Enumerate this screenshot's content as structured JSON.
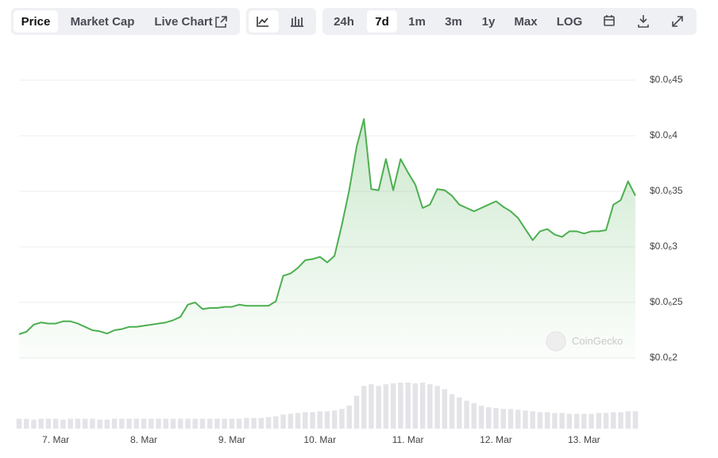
{
  "controls": {
    "tabs": [
      "Price",
      "Market Cap",
      "Live Chart"
    ],
    "ranges": [
      "24h",
      "7d",
      "1m",
      "3m",
      "1y",
      "Max",
      "LOG"
    ]
  },
  "watermark": "CoinGecko",
  "chart_data": {
    "type": "area",
    "color": "#4caf50",
    "categories": [
      null,
      null,
      null,
      null,
      null,
      "7. Mar",
      null,
      null,
      null,
      null,
      null,
      null,
      null,
      null,
      null,
      null,
      null,
      "8. Mar",
      null,
      null,
      null,
      null,
      null,
      null,
      null,
      null,
      null,
      null,
      null,
      "9. Mar",
      null,
      null,
      null,
      null,
      null,
      null,
      null,
      null,
      null,
      null,
      null,
      "10. Mar",
      null,
      null,
      null,
      null,
      null,
      null,
      null,
      null,
      null,
      null,
      null,
      "11. Mar",
      null,
      null,
      null,
      null,
      null,
      null,
      null,
      null,
      null,
      null,
      null,
      "12. Mar",
      null,
      null,
      null,
      null,
      null,
      null,
      null,
      null,
      null,
      null,
      null,
      "13. Mar",
      null,
      null,
      null,
      null,
      null,
      null,
      null
    ],
    "values": [
      2.214e-07,
      2.236e-07,
      2.3e-07,
      2.32e-07,
      2.31e-07,
      2.31e-07,
      2.33e-07,
      2.33e-07,
      2.31e-07,
      2.28e-07,
      2.25e-07,
      2.24e-07,
      2.22e-07,
      2.25e-07,
      2.26e-07,
      2.28e-07,
      2.28e-07,
      2.29e-07,
      2.3e-07,
      2.31e-07,
      2.32e-07,
      2.34e-07,
      2.37e-07,
      2.48e-07,
      2.5e-07,
      2.44e-07,
      2.45e-07,
      2.45e-07,
      2.46e-07,
      2.46e-07,
      2.48e-07,
      2.47e-07,
      2.47e-07,
      2.47e-07,
      2.47e-07,
      2.51e-07,
      2.74e-07,
      2.76e-07,
      2.81e-07,
      2.88e-07,
      2.89e-07,
      2.91e-07,
      2.86e-07,
      2.92e-07,
      3.2e-07,
      3.51e-07,
      3.9e-07,
      4.15e-07,
      3.52e-07,
      3.51e-07,
      3.79e-07,
      3.51e-07,
      3.79e-07,
      3.67e-07,
      3.56e-07,
      3.35e-07,
      3.38e-07,
      3.52e-07,
      3.51e-07,
      3.46e-07,
      3.38e-07,
      3.35e-07,
      3.32e-07,
      3.35e-07,
      3.38e-07,
      3.41e-07,
      3.36e-07,
      3.32e-07,
      3.26e-07,
      3.16e-07,
      3.06e-07,
      3.14e-07,
      3.16e-07,
      3.11e-07,
      3.09e-07,
      3.14e-07,
      3.14e-07,
      3.12e-07,
      3.14e-07,
      3.14e-07,
      3.15e-07,
      3.38e-07,
      3.42e-07,
      3.59e-07,
      3.46e-07
    ],
    "volume_values": [
      12,
      12,
      11,
      12,
      12,
      12,
      11,
      12,
      12,
      12,
      12,
      11,
      11,
      12,
      12,
      12,
      12,
      12,
      12,
      12,
      12,
      12,
      12,
      12,
      12,
      12,
      12,
      12,
      12,
      12,
      12,
      13,
      13,
      13,
      14,
      15,
      17,
      18,
      19,
      20,
      20,
      21,
      21,
      22,
      24,
      28,
      40,
      52,
      54,
      52,
      54,
      55,
      56,
      56,
      55,
      56,
      54,
      52,
      48,
      42,
      38,
      34,
      31,
      28,
      26,
      25,
      24,
      24,
      23,
      22,
      21,
      20,
      20,
      19,
      19,
      18,
      18,
      18,
      18,
      19,
      19,
      20,
      20,
      21,
      21
    ],
    "ylim": [
      2e-07,
      4.5e-07
    ],
    "yticks": [
      {
        "value": 2e-07,
        "label": "$0.0₆2"
      },
      {
        "value": 2.5e-07,
        "label": "$0.0₆25"
      },
      {
        "value": 3e-07,
        "label": "$0.0₆3"
      },
      {
        "value": 3.5e-07,
        "label": "$0.0₆35"
      },
      {
        "value": 4e-07,
        "label": "$0.0₆4"
      },
      {
        "value": 4.5e-07,
        "label": "$0.0₆45"
      }
    ],
    "grid": true
  }
}
